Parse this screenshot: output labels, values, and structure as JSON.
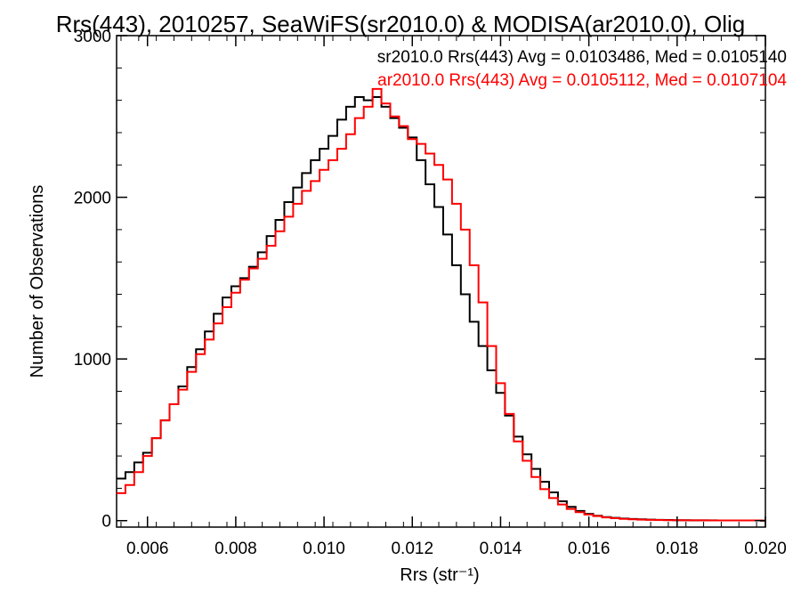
{
  "chart_data": {
    "type": "line",
    "title": "Rrs(443), 2010257, SeaWiFS(sr2010.0) & MODISA(ar2010.0), Olig",
    "xlabel": "Rrs (str⁻¹)",
    "ylabel": "Number of Observations",
    "xlim": [
      0.0053,
      0.02
    ],
    "ylim": [
      -40,
      3000
    ],
    "xticks": [
      "0.006",
      "0.008",
      "0.010",
      "0.012",
      "0.014",
      "0.016",
      "0.018",
      "0.020"
    ],
    "yticks": [
      "0",
      "1000",
      "2000",
      "3000"
    ],
    "legend_position": "top-right",
    "series": [
      {
        "name": "sr2010.0 Rrs(443) Avg = 0.0103486, Med = 0.0105140",
        "color": "#000000",
        "x": [
          0.0053,
          0.0055,
          0.0057,
          0.0059,
          0.0061,
          0.0063,
          0.0065,
          0.0067,
          0.0069,
          0.0071,
          0.0073,
          0.0075,
          0.0077,
          0.0079,
          0.0081,
          0.0083,
          0.0085,
          0.0087,
          0.0089,
          0.0091,
          0.0093,
          0.0095,
          0.0097,
          0.0099,
          0.0101,
          0.0103,
          0.0105,
          0.0107,
          0.0109,
          0.0111,
          0.0113,
          0.0115,
          0.0117,
          0.0119,
          0.0121,
          0.0123,
          0.0125,
          0.0127,
          0.0129,
          0.0131,
          0.0133,
          0.0135,
          0.0137,
          0.0139,
          0.0141,
          0.0143,
          0.0145,
          0.0147,
          0.0149,
          0.0151,
          0.0153,
          0.0155,
          0.0157,
          0.0159,
          0.0161,
          0.0163,
          0.0165,
          0.0167,
          0.0169,
          0.0171,
          0.0173,
          0.0175,
          0.0177,
          0.0179,
          0.0181,
          0.0183,
          0.0185,
          0.0187,
          0.0189,
          0.0191,
          0.0193,
          0.0195,
          0.0197,
          0.0199,
          0.02
        ],
        "y": [
          260,
          300,
          360,
          420,
          510,
          620,
          720,
          830,
          950,
          1060,
          1170,
          1280,
          1380,
          1450,
          1500,
          1570,
          1660,
          1760,
          1860,
          1970,
          2060,
          2150,
          2230,
          2300,
          2380,
          2480,
          2560,
          2620,
          2600,
          2620,
          2560,
          2490,
          2430,
          2370,
          2230,
          2080,
          1940,
          1770,
          1580,
          1400,
          1230,
          1080,
          930,
          790,
          650,
          520,
          410,
          320,
          240,
          175,
          120,
          85,
          60,
          42,
          30,
          22,
          17,
          13,
          10,
          8,
          6,
          5,
          4,
          3,
          3,
          2,
          2,
          2,
          1,
          1,
          1,
          1,
          1,
          0,
          0
        ]
      },
      {
        "name": "ar2010.0 Rrs(443) Avg = 0.0105112, Med = 0.0107104",
        "color": "#ff0000",
        "x": [
          0.0053,
          0.0055,
          0.0057,
          0.0059,
          0.0061,
          0.0063,
          0.0065,
          0.0067,
          0.0069,
          0.0071,
          0.0073,
          0.0075,
          0.0077,
          0.0079,
          0.0081,
          0.0083,
          0.0085,
          0.0087,
          0.0089,
          0.0091,
          0.0093,
          0.0095,
          0.0097,
          0.0099,
          0.0101,
          0.0103,
          0.0105,
          0.0107,
          0.0109,
          0.0111,
          0.0113,
          0.0115,
          0.0117,
          0.0119,
          0.0121,
          0.0123,
          0.0125,
          0.0127,
          0.0129,
          0.0131,
          0.0133,
          0.0135,
          0.0137,
          0.0139,
          0.0141,
          0.0143,
          0.0145,
          0.0147,
          0.0149,
          0.0151,
          0.0153,
          0.0155,
          0.0157,
          0.0159,
          0.0161,
          0.0163,
          0.0165,
          0.0167,
          0.0169,
          0.0171,
          0.0173,
          0.0175,
          0.0177,
          0.0179,
          0.0181,
          0.0183,
          0.0185,
          0.0187,
          0.0189,
          0.0191,
          0.0193,
          0.0195,
          0.0197,
          0.0199,
          0.02
        ],
        "y": [
          170,
          220,
          300,
          400,
          510,
          620,
          720,
          810,
          920,
          1030,
          1120,
          1220,
          1320,
          1410,
          1490,
          1560,
          1620,
          1700,
          1790,
          1880,
          1960,
          2040,
          2100,
          2170,
          2230,
          2300,
          2390,
          2490,
          2560,
          2670,
          2580,
          2500,
          2440,
          2360,
          2330,
          2270,
          2200,
          2110,
          1960,
          1800,
          1580,
          1350,
          1080,
          850,
          660,
          490,
          370,
          270,
          195,
          140,
          100,
          72,
          52,
          38,
          28,
          20,
          15,
          11,
          8,
          6,
          5,
          4,
          3,
          3,
          2,
          2,
          2,
          1,
          1,
          1,
          1,
          1,
          1,
          0,
          0
        ]
      }
    ]
  }
}
